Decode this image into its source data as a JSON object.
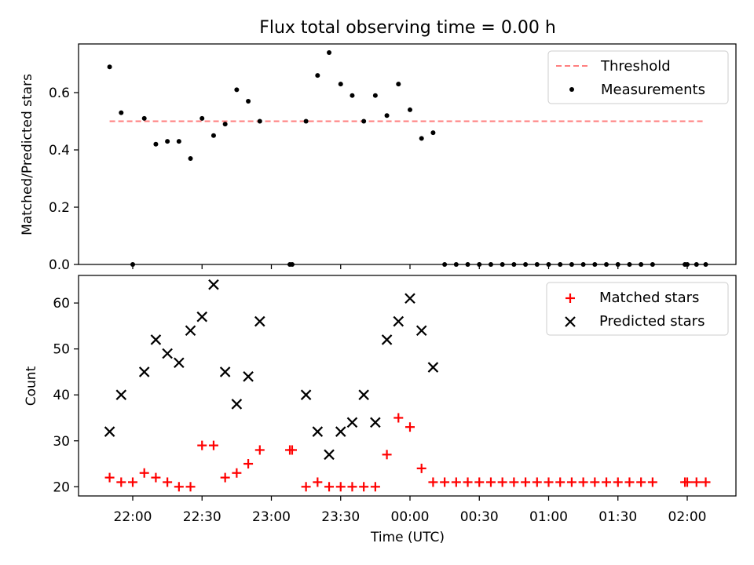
{
  "figure": {
    "title": "Flux total observing time = 0.00 h"
  },
  "chart_data": [
    {
      "type": "scatter",
      "title": "Flux total observing time = 0.00 h",
      "xlabel": "",
      "ylabel": "Matched/Predicted stars",
      "x_unit": "minutes",
      "ylim": [
        0.0,
        0.77
      ],
      "yticks": [
        0.0,
        0.2,
        0.4,
        0.6
      ],
      "yticklabels": [
        "0.0",
        "0.2",
        "0.4",
        "0.6"
      ],
      "threshold": {
        "name": "Threshold",
        "value": 0.5,
        "color": "#ff7f7f",
        "style": "dashed",
        "x_range": [
          "21:50",
          "02:08"
        ]
      },
      "legend": {
        "position": "top-right",
        "entries": [
          "Threshold",
          "Measurements"
        ]
      },
      "series": [
        {
          "name": "Measurements",
          "color": "#000000",
          "marker": "dot",
          "x": [
            "21:50",
            "21:55",
            "22:00",
            "22:05",
            "22:10",
            "22:15",
            "22:20",
            "22:25",
            "22:30",
            "22:35",
            "22:40",
            "22:45",
            "22:50",
            "22:55",
            "23:08",
            "23:09",
            "23:15",
            "23:20",
            "23:25",
            "23:30",
            "23:35",
            "23:40",
            "23:45",
            "23:50",
            "23:55",
            "00:00",
            "00:05",
            "00:10",
            "00:15",
            "00:20",
            "00:25",
            "00:30",
            "00:35",
            "00:40",
            "00:45",
            "00:50",
            "00:55",
            "01:00",
            "01:05",
            "01:10",
            "01:15",
            "01:20",
            "01:25",
            "01:30",
            "01:35",
            "01:40",
            "01:45",
            "01:59",
            "02:00",
            "02:04",
            "02:08"
          ],
          "y": [
            0.69,
            0.53,
            0.0,
            0.51,
            0.42,
            0.43,
            0.43,
            0.37,
            0.51,
            0.45,
            0.49,
            0.61,
            0.57,
            0.5,
            0.0,
            0.0,
            0.5,
            0.66,
            0.74,
            0.63,
            0.59,
            0.5,
            0.59,
            0.52,
            0.63,
            0.54,
            0.44,
            0.46,
            0.0,
            0.0,
            0.0,
            0.0,
            0.0,
            0.0,
            0.0,
            0.0,
            0.0,
            0.0,
            0.0,
            0.0,
            0.0,
            0.0,
            0.0,
            0.0,
            0.0,
            0.0,
            0.0,
            0.0,
            0.0,
            0.0,
            0.0
          ]
        }
      ]
    },
    {
      "type": "scatter",
      "title": "",
      "xlabel": "Time (UTC)",
      "ylabel": "Count",
      "ylim": [
        18,
        66
      ],
      "yticks": [
        20,
        30,
        40,
        50,
        60
      ],
      "yticklabels": [
        "20",
        "30",
        "40",
        "50",
        "60"
      ],
      "xticks": [
        "22:00",
        "22:30",
        "23:00",
        "23:30",
        "00:00",
        "00:30",
        "01:00",
        "01:30",
        "02:00"
      ],
      "legend": {
        "position": "top-right",
        "entries": [
          "Matched stars",
          "Predicted stars"
        ]
      },
      "series": [
        {
          "name": "Matched stars",
          "color": "#ff0000",
          "marker": "plus",
          "x": [
            "21:50",
            "21:55",
            "22:00",
            "22:05",
            "22:10",
            "22:15",
            "22:20",
            "22:25",
            "22:30",
            "22:35",
            "22:40",
            "22:45",
            "22:50",
            "22:55",
            "23:08",
            "23:09",
            "23:15",
            "23:20",
            "23:25",
            "23:30",
            "23:35",
            "23:40",
            "23:45",
            "23:50",
            "23:55",
            "00:00",
            "00:05",
            "00:10",
            "00:15",
            "00:20",
            "00:25",
            "00:30",
            "00:35",
            "00:40",
            "00:45",
            "00:50",
            "00:55",
            "01:00",
            "01:05",
            "01:10",
            "01:15",
            "01:20",
            "01:25",
            "01:30",
            "01:35",
            "01:40",
            "01:45",
            "01:59",
            "02:00",
            "02:04",
            "02:08"
          ],
          "y": [
            22,
            21,
            21,
            23,
            22,
            21,
            20,
            20,
            29,
            29,
            22,
            23,
            25,
            28,
            28,
            28,
            20,
            21,
            20,
            20,
            20,
            20,
            20,
            27,
            35,
            33,
            24,
            21,
            21,
            21,
            21,
            21,
            21,
            21,
            21,
            21,
            21,
            21,
            21,
            21,
            21,
            21,
            21,
            21,
            21,
            21,
            21,
            21,
            21,
            21,
            21
          ]
        },
        {
          "name": "Predicted stars",
          "color": "#000000",
          "marker": "x",
          "x": [
            "21:50",
            "21:55",
            "22:05",
            "22:10",
            "22:15",
            "22:20",
            "22:25",
            "22:30",
            "22:35",
            "22:40",
            "22:45",
            "22:50",
            "22:55",
            "23:15",
            "23:20",
            "23:25",
            "23:30",
            "23:35",
            "23:40",
            "23:45",
            "23:50",
            "23:55",
            "00:00",
            "00:05",
            "00:10"
          ],
          "y": [
            32,
            40,
            45,
            52,
            49,
            47,
            54,
            57,
            64,
            45,
            38,
            44,
            56,
            40,
            32,
            27,
            32,
            34,
            40,
            34,
            52,
            56,
            61,
            54,
            46
          ]
        }
      ]
    }
  ]
}
